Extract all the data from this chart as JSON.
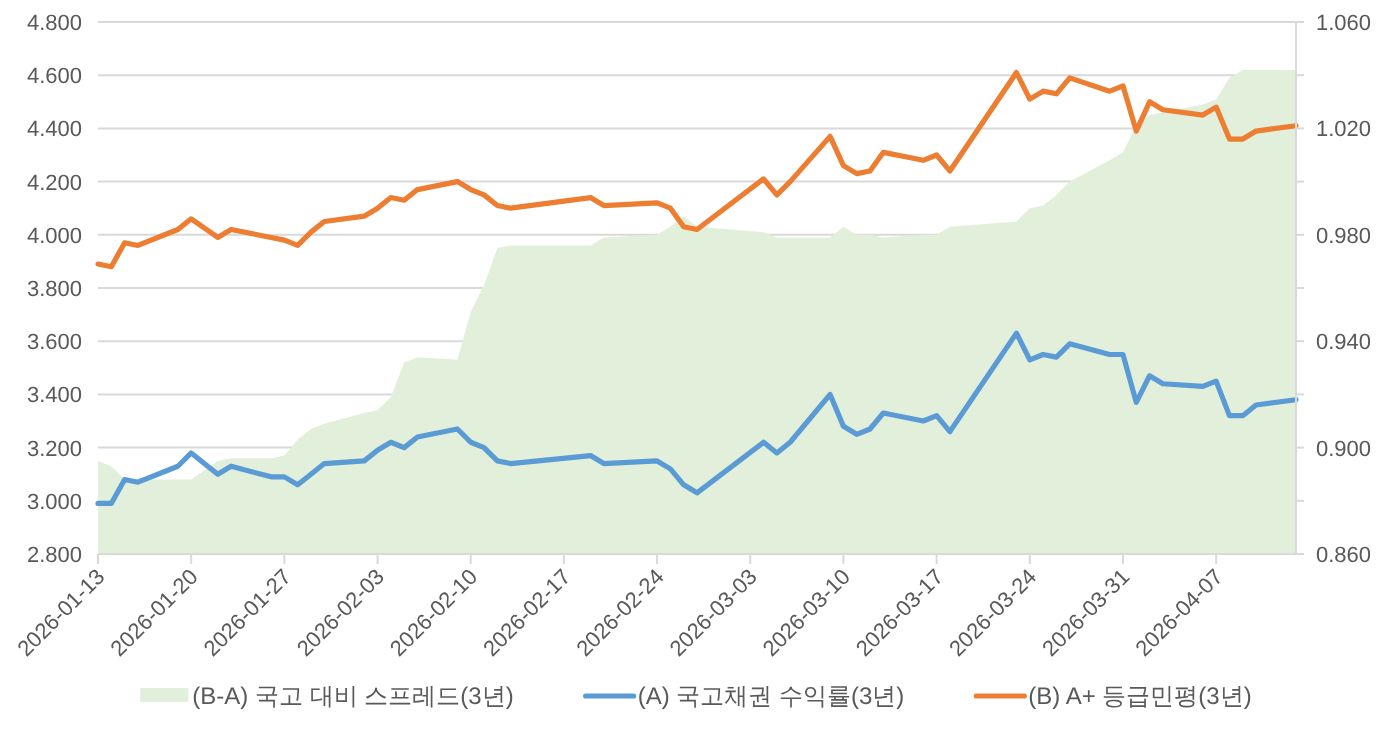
{
  "chart_data": {
    "type": "line",
    "x": [
      "2026-01-13",
      "2026-01-14",
      "2026-01-15",
      "2026-01-16",
      "2026-01-19",
      "2026-01-20",
      "2026-01-22",
      "2026-01-23",
      "2026-01-26",
      "2026-01-27",
      "2026-01-28",
      "2026-01-29",
      "2026-01-30",
      "2026-02-02",
      "2026-02-03",
      "2026-02-04",
      "2026-02-05",
      "2026-02-06",
      "2026-02-09",
      "2026-02-10",
      "2026-02-11",
      "2026-02-12",
      "2026-02-13",
      "2026-02-19",
      "2026-02-20",
      "2026-02-24",
      "2026-02-25",
      "2026-02-26",
      "2026-02-27",
      "2026-03-04",
      "2026-03-05",
      "2026-03-06",
      "2026-03-09",
      "2026-03-10",
      "2026-03-11",
      "2026-03-12",
      "2026-03-13",
      "2026-03-16",
      "2026-03-17",
      "2026-03-18",
      "2026-03-23",
      "2026-03-24",
      "2026-03-25",
      "2026-03-26",
      "2026-03-27",
      "2026-03-30",
      "2026-03-31",
      "2026-04-01",
      "2026-04-02",
      "2026-04-03",
      "2026-04-06",
      "2026-04-07",
      "2026-04-08",
      "2026-04-09",
      "2026-04-10",
      "2026-04-13"
    ],
    "series": [
      {
        "name": "(B-A) 국고 대비 스프레드(3년)",
        "type": "area",
        "axis": "y2",
        "color": "#e2efda",
        "values": [
          0.895,
          0.893,
          0.888,
          0.888,
          0.888,
          0.888,
          0.895,
          0.896,
          0.896,
          0.897,
          0.903,
          0.907,
          0.909,
          0.913,
          0.914,
          0.919,
          0.932,
          0.934,
          0.933,
          0.951,
          0.961,
          0.975,
          0.976,
          0.976,
          0.979,
          0.98,
          0.983,
          0.987,
          0.983,
          0.981,
          0.979,
          0.979,
          0.979,
          0.983,
          0.98,
          0.98,
          0.979,
          0.98,
          0.98,
          0.983,
          0.985,
          0.99,
          0.991,
          0.995,
          1.0,
          1.008,
          1.011,
          1.021,
          1.025,
          1.026,
          1.029,
          1.031,
          1.039,
          1.042,
          1.042,
          1.042
        ]
      },
      {
        "name": "(A) 국고채권 수익률(3년)",
        "color": "#5b9bd5",
        "values": [
          2.99,
          2.99,
          3.08,
          3.07,
          3.13,
          3.18,
          3.1,
          3.13,
          3.09,
          3.09,
          3.06,
          3.1,
          3.14,
          3.15,
          3.19,
          3.22,
          3.2,
          3.24,
          3.27,
          3.22,
          3.2,
          3.15,
          3.14,
          3.17,
          3.14,
          3.15,
          3.12,
          3.06,
          3.03,
          3.22,
          3.18,
          3.22,
          3.4,
          3.28,
          3.25,
          3.27,
          3.33,
          3.3,
          3.32,
          3.26,
          3.63,
          3.53,
          3.55,
          3.54,
          3.59,
          3.55,
          3.55,
          3.37,
          3.47,
          3.44,
          3.43,
          3.45,
          3.32,
          3.32,
          3.36,
          3.38
        ]
      },
      {
        "name": "(B) A+ 등급민평(3년)",
        "color": "#ed7d31",
        "values": [
          3.89,
          3.88,
          3.97,
          3.96,
          4.02,
          4.06,
          3.99,
          4.02,
          3.99,
          3.98,
          3.96,
          4.01,
          4.05,
          4.07,
          4.1,
          4.14,
          4.13,
          4.17,
          4.2,
          4.17,
          4.15,
          4.11,
          4.1,
          4.14,
          4.11,
          4.12,
          4.1,
          4.03,
          4.02,
          4.21,
          4.15,
          4.2,
          4.37,
          4.26,
          4.23,
          4.24,
          4.31,
          4.28,
          4.3,
          4.24,
          4.61,
          4.51,
          4.54,
          4.53,
          4.59,
          4.54,
          4.56,
          4.39,
          4.5,
          4.47,
          4.45,
          4.48,
          4.36,
          4.36,
          4.39,
          4.41
        ]
      }
    ],
    "xlim": [
      "2026-01-13",
      "2026-04-13"
    ],
    "xticks": [
      "2026-01-13",
      "2026-01-20",
      "2026-01-27",
      "2026-02-03",
      "2026-02-10",
      "2026-02-17",
      "2026-02-24",
      "2026-03-03",
      "2026-03-10",
      "2026-03-17",
      "2026-03-24",
      "2026-03-31",
      "2026-04-07"
    ],
    "ylim": [
      2.8,
      4.8
    ],
    "yticks": [
      {
        "value": 2.8,
        "label": "2.800"
      },
      {
        "value": 3.0,
        "label": "3.000"
      },
      {
        "value": 3.2,
        "label": "3.200"
      },
      {
        "value": 3.4,
        "label": "3.400"
      },
      {
        "value": 3.6,
        "label": "3.600"
      },
      {
        "value": 3.8,
        "label": "3.800"
      },
      {
        "value": 4.0,
        "label": "4.000"
      },
      {
        "value": 4.2,
        "label": "4.200"
      },
      {
        "value": 4.4,
        "label": "4.400"
      },
      {
        "value": 4.6,
        "label": "4.600"
      },
      {
        "value": 4.8,
        "label": "4.800"
      }
    ],
    "y2lim": [
      0.86,
      1.06
    ],
    "y2ticks": [
      {
        "value": 0.86,
        "label": "0.860"
      },
      {
        "value": 0.88,
        "label": null
      },
      {
        "value": 0.9,
        "label": "0.900"
      },
      {
        "value": 0.92,
        "label": null
      },
      {
        "value": 0.94,
        "label": "0.940"
      },
      {
        "value": 0.96,
        "label": null
      },
      {
        "value": 0.98,
        "label": "0.980"
      },
      {
        "value": 1.0,
        "label": null
      },
      {
        "value": 1.02,
        "label": "1.020"
      },
      {
        "value": 1.04,
        "label": null
      },
      {
        "value": 1.06,
        "label": "1.060"
      }
    ],
    "grid": "y",
    "legend": "bottom",
    "marker": "none",
    "line_style": "solid"
  }
}
